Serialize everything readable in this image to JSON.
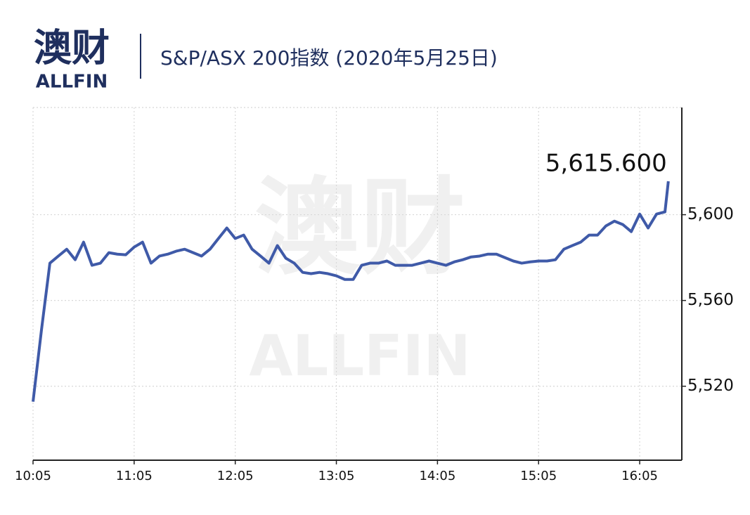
{
  "logo": {
    "cn": "澳财",
    "en": "ALLFIN"
  },
  "chart_data": {
    "type": "line",
    "title": "S&P/ASX 200指数 (2020年5月25日)",
    "x": [
      "10:05",
      "10:10",
      "10:15",
      "10:20",
      "10:25",
      "10:30",
      "10:35",
      "10:40",
      "10:45",
      "10:50",
      "10:55",
      "11:00",
      "11:05",
      "11:10",
      "11:15",
      "11:20",
      "11:25",
      "11:30",
      "11:35",
      "11:40",
      "11:45",
      "11:50",
      "11:55",
      "12:00",
      "12:05",
      "12:10",
      "12:15",
      "12:20",
      "12:25",
      "12:30",
      "12:35",
      "12:40",
      "12:45",
      "12:50",
      "12:55",
      "13:00",
      "13:05",
      "13:10",
      "13:15",
      "13:20",
      "13:25",
      "13:30",
      "13:35",
      "13:40",
      "13:45",
      "13:50",
      "13:55",
      "14:00",
      "14:05",
      "14:10",
      "14:15",
      "14:20",
      "14:25",
      "14:30",
      "14:35",
      "14:40",
      "14:45",
      "14:50",
      "14:55",
      "15:00",
      "15:05",
      "15:10",
      "15:15",
      "15:20",
      "15:25",
      "15:30",
      "15:35",
      "15:40",
      "15:45",
      "15:50",
      "15:55",
      "16:00",
      "16:05",
      "16:10",
      "16:15",
      "16:20",
      "16:22"
    ],
    "series": [
      {
        "name": "S&P/ASX 200",
        "color": "#3f5aa8",
        "values": [
          5512.8,
          5546.2,
          5577.4,
          5580.7,
          5583.9,
          5579,
          5587.2,
          5576.4,
          5577.4,
          5582.3,
          5581.6,
          5581.3,
          5584.9,
          5587.2,
          5577.4,
          5580.7,
          5581.6,
          5583,
          5583.9,
          5582.3,
          5580.7,
          5583.9,
          5588.9,
          5593.8,
          5588.9,
          5590.5,
          5583.9,
          5580.7,
          5577.4,
          5585.6,
          5579.7,
          5577.4,
          5573.1,
          5572.5,
          5573.1,
          5572.5,
          5571.5,
          5569.8,
          5569.8,
          5576.4,
          5577.4,
          5577.4,
          5578.4,
          5576.4,
          5576.4,
          5576.4,
          5577.4,
          5578.4,
          5577.4,
          5576.4,
          5578,
          5579,
          5580.3,
          5580.7,
          5581.6,
          5581.6,
          5580,
          5578.4,
          5577.4,
          5578,
          5578.4,
          5578.4,
          5579,
          5583.9,
          5585.6,
          5587.2,
          5590.5,
          5590.5,
          5594.8,
          5597,
          5595.4,
          5592.1,
          5600.3,
          5593.8,
          5600.3,
          5601.3,
          5615.6
        ],
        "value_labels": [
          null,
          null,
          null,
          null,
          null,
          null,
          null,
          null,
          null,
          null,
          null,
          null,
          null,
          null,
          null,
          null,
          null,
          null,
          null,
          null,
          null,
          null,
          null,
          null,
          null,
          null,
          null,
          null,
          null,
          null,
          null,
          null,
          null,
          null,
          null,
          null,
          null,
          null,
          null,
          null,
          null,
          null,
          null,
          null,
          null,
          null,
          null,
          null,
          null,
          null,
          null,
          null,
          null,
          null,
          null,
          null,
          null,
          null,
          null,
          null,
          null,
          null,
          null,
          null,
          null,
          null,
          null,
          null,
          null,
          null,
          null,
          null,
          null,
          null,
          null,
          null,
          "5,615.600"
        ]
      }
    ],
    "xlim": [
      "10:05",
      "16:30"
    ],
    "xticks": [
      "10:05",
      "11:05",
      "12:05",
      "13:05",
      "14:05",
      "15:05",
      "16:05"
    ],
    "ylim": [
      5485.5,
      5650
    ],
    "yticks": [
      {
        "value": 5520,
        "label": "5,520"
      },
      {
        "value": 5560,
        "label": "5,560"
      },
      {
        "value": 5600,
        "label": "5,600"
      }
    ],
    "grid": true
  }
}
